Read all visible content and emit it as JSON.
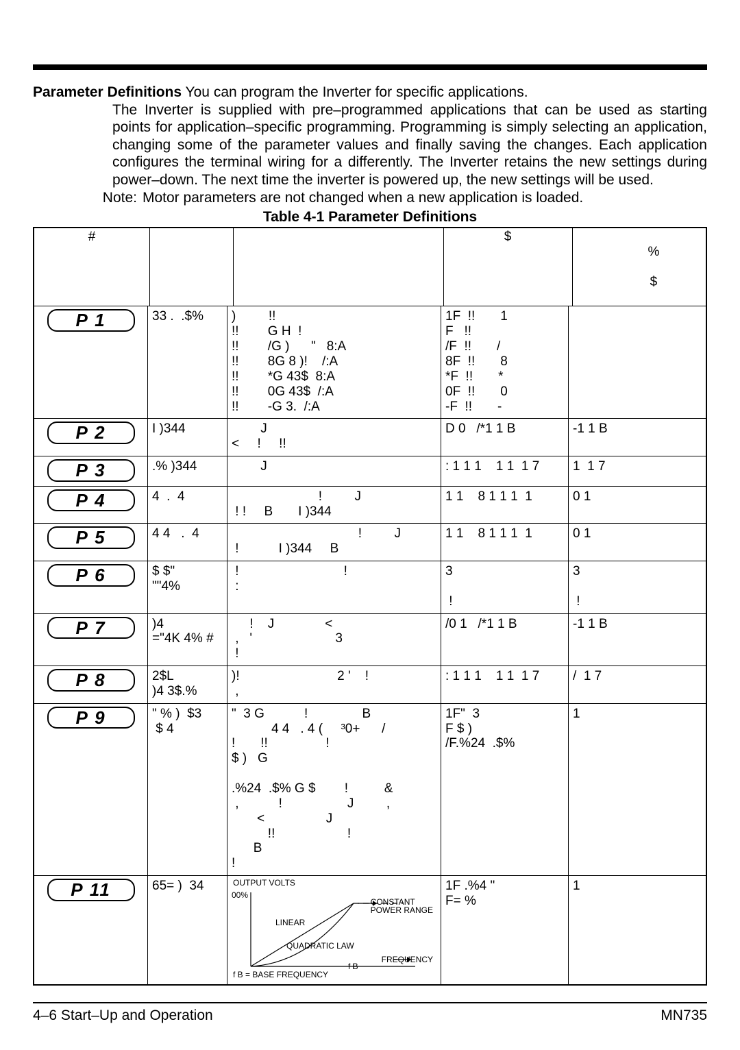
{
  "intro": {
    "lead": "Parameter Definitions",
    "body": "You can program the Inverter for specific applications.  The Inverter is supplied with pre–programmed applications that can be used as starting points for application–specific programming. Programming is simply selecting an application, changing some of the parameter values and finally saving the changes. Each application configures the terminal wiring for a differently.  The Inverter retains the new settings during power–down.  The next time the inverter is powered up, the new settings will be used."
  },
  "note": {
    "label": "Note:",
    "text": "Motor parameters are not changed when a new application is loaded."
  },
  "table_title": "Table 4-1  Parameter Definitions",
  "headers": {
    "pn": "#",
    "name": "",
    "desc": "",
    "range": "$",
    "factory1": "%",
    "factory2": "$"
  },
  "rows": [
    {
      "pn": "P  1",
      "name": "33 .  .$%",
      "desc": ")         !!\n!!        G H  !\n!!        /G )      \"   8:A\n!!        8G 8 )!    /:A\n!!        *G 43$  8:A\n!!        0G 43$  /:A\n!!        -G 3.  /:A",
      "range": "1F  !!       1\nF   !!\n/F  !!       /\n8F  !!       8\n*F  !!       *\n0F  !!       0\n-F  !!       -",
      "factory": ""
    },
    {
      "pn": "P  2",
      "name": "I )344",
      "desc": "        J\n<     !     !!",
      "range": "D 0   /*1 1 B",
      "factory": "-1 1 B"
    },
    {
      "pn": "P  3",
      "name": ".% )344",
      "desc": "        J",
      "range": ": 1 1 1    1 1  1 7",
      "factory": "1  1 7"
    },
    {
      "pn": "P  4",
      "name": "4  .  4",
      "desc": "                        !         J\n ! !     B       I )344",
      "range": "1 1    8 1 1 1  1",
      "factory": "0 1"
    },
    {
      "pn": "P  5",
      "name": "4 4   .  4",
      "desc": "                                   !         J\n !           I )344     B",
      "range": "1 1    8 1 1 1  1",
      "factory": "0 1"
    },
    {
      "pn": "P  6",
      "name": "$ $\"\n\"\"4%",
      "desc": " !                             !\n :\n                                ",
      "range": "3\n\n !",
      "factory": "3\n\n !"
    },
    {
      "pn": "P  7",
      "name": ")4\n=\"4K 4% #",
      "desc": "     !    J              <\n ,   '                       3\n !",
      "range": "/0 1   /*1 1 B",
      "factory": "-1 1 B"
    },
    {
      "pn": "P  8",
      "name": "2$L\n)4 3$.%",
      "desc": ")!                           2 '    !\n ,",
      "range": ": 1 1 1    1 1  1 7",
      "factory": "/  1 7"
    },
    {
      "pn": "P  9",
      "name": "\" % )  $3\n $ 4",
      "desc": "\"  3 G           !               B\n           4 4   . 4 (     ³0+      /\n!       !!                !\n$ )   G\n\n.%24  .$% G $        !          &\n ,           !                  J         ,\n       <                 J\n          !!                    !\n      B\n!",
      "range": "1F\"  3\nF $ )\n/F.%24  .$%",
      "factory": "1"
    },
    {
      "pn": "P  11",
      "name": "65= )  34",
      "desc": "__VF__",
      "range": "1F .%4 \"\nF= %",
      "factory": "1"
    }
  ],
  "vf_diagram": {
    "ylab": "OUTPUT VOLTS",
    "zero": "00%",
    "cpr": "CONSTANT\nPOWER RANGE",
    "lin": "LINEAR",
    "quad": "QUADRATIC LAW",
    "freq": "FREQUENCY",
    "fb": "f B",
    "base": "f B = BASE FREQUENCY",
    "strokes": {
      "axis": "#000",
      "line_w": 1.2
    }
  },
  "footer": {
    "left": "4–6 Start–Up and Operation",
    "right": "MN735"
  }
}
